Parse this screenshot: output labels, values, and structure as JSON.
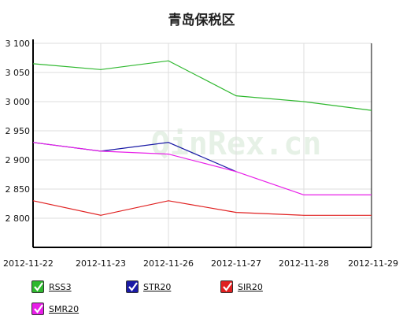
{
  "chart_data": {
    "type": "line",
    "title": "青岛保税区",
    "x": [
      "2012-11-22",
      "2012-11-23",
      "2012-11-26",
      "2012-11-27",
      "2012-11-28",
      "2012-11-29"
    ],
    "series": [
      {
        "name": "RSS3",
        "color": "#2fb82f",
        "values": [
          3065,
          3055,
          3070,
          3010,
          3000,
          2985
        ]
      },
      {
        "name": "STR20",
        "color": "#1a1aa6",
        "values": [
          2930,
          2915,
          2930,
          2880,
          null,
          null
        ]
      },
      {
        "name": "SIR20",
        "color": "#e02020",
        "values": [
          2830,
          2805,
          2830,
          2810,
          2805,
          2805
        ]
      },
      {
        "name": "SMR20",
        "color": "#e81ee8",
        "values": [
          2930,
          2915,
          2910,
          2880,
          2840,
          2840
        ]
      }
    ],
    "yticks": [
      "3 100",
      "3 050",
      "3 000",
      "2 950",
      "2 900",
      "2 850",
      "2 800"
    ],
    "ytick_values": [
      3100,
      3050,
      3000,
      2950,
      2900,
      2850,
      2800
    ],
    "ylim": [
      2750,
      3100
    ],
    "grid": true,
    "legend_position": "bottom"
  },
  "watermark": "QinRex.cn"
}
